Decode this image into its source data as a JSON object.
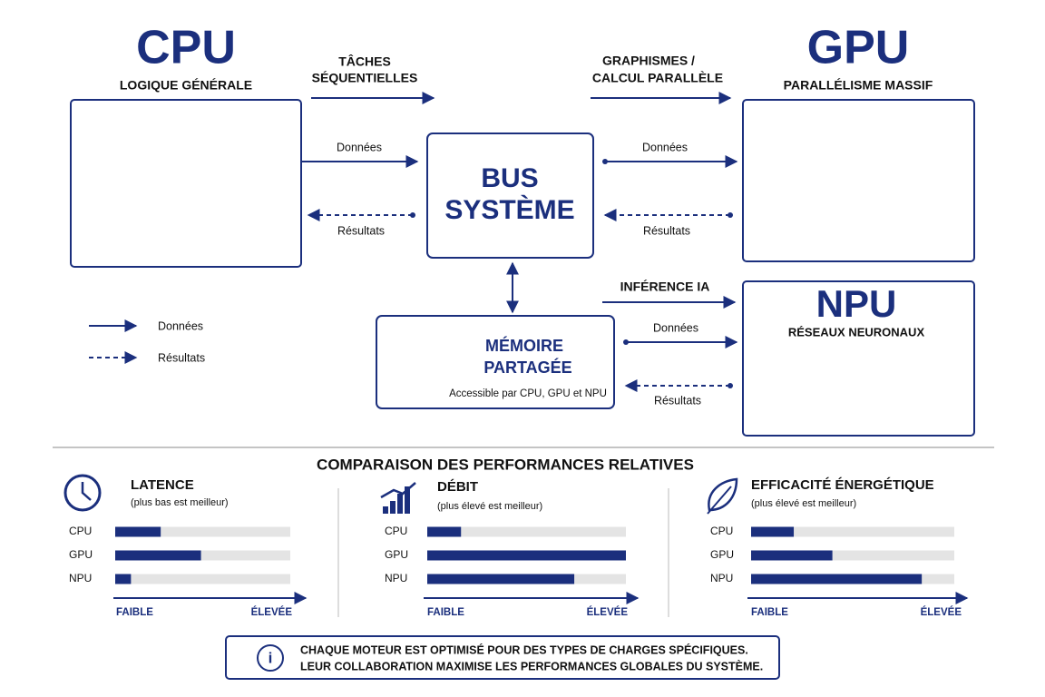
{
  "cpu": {
    "title": "CPU",
    "subtitle": "LOGIQUE GÉNÉRALE"
  },
  "gpu": {
    "title": "GPU",
    "subtitle": "PARALLÉLISME MASSIF"
  },
  "npu": {
    "title": "NPU",
    "subtitle": "RÉSEAUX NEURONAUX"
  },
  "bus": {
    "lines": [
      "BUS",
      "SYSTÈME"
    ]
  },
  "memory": {
    "lines": [
      "MÉMOIRE",
      "PARTAGÉE"
    ],
    "caption": "Accessible par CPU, GPU et NPU"
  },
  "links": {
    "cpu": {
      "task": [
        "TÂCHES",
        "SÉQUENTIELLES"
      ],
      "data": "Données",
      "results": "Résultats"
    },
    "gpu": {
      "task": [
        "GRAPHISMES /",
        "CALCUL PARALLÈLE"
      ],
      "data": "Données",
      "results": "Résultats"
    },
    "npu": {
      "task": [
        "INFÉRENCE IA"
      ],
      "data": "Données",
      "results": "Résultats"
    }
  },
  "legend": [
    "Données",
    "Résultats"
  ],
  "comparison": {
    "title": "COMPARAISON DES PERFORMANCES RELATIVES",
    "panels": [
      {
        "title": "LATENCE",
        "note": "(plus bas est meilleur)",
        "categories": [
          "CPU",
          "GPU",
          "NPU"
        ],
        "values": [
          26,
          49,
          9
        ],
        "xlim": [
          0,
          100
        ],
        "axis_labels": [
          "FAIBLE",
          "ÉLEVÉE"
        ]
      },
      {
        "title": "DÉBIT",
        "note": "(plus élevé est meilleur)",
        "categories": [
          "CPU",
          "GPU",
          "NPU"
        ],
        "values": [
          17,
          100,
          74
        ],
        "xlim": [
          0,
          100
        ],
        "axis_labels": [
          "FAIBLE",
          "ÉLEVÉE"
        ]
      },
      {
        "title": "EFFICACITÉ ÉNERGÉTIQUE",
        "note": "(plus élevé est meilleur)",
        "categories": [
          "CPU",
          "GPU",
          "NPU"
        ],
        "values": [
          21,
          40,
          84
        ],
        "xlim": [
          0,
          100
        ],
        "axis_labels": [
          "FAIBLE",
          "ÉLEVÉE"
        ]
      }
    ]
  },
  "note": [
    "CHAQUE MOTEUR EST OPTIMISÉ POUR DES TYPES DE CHARGES SPÉCIFIQUES.",
    "LEUR COLLABORATION MAXIMISE LES PERFORMANCES GLOBALES DU SYSTÈME."
  ]
}
